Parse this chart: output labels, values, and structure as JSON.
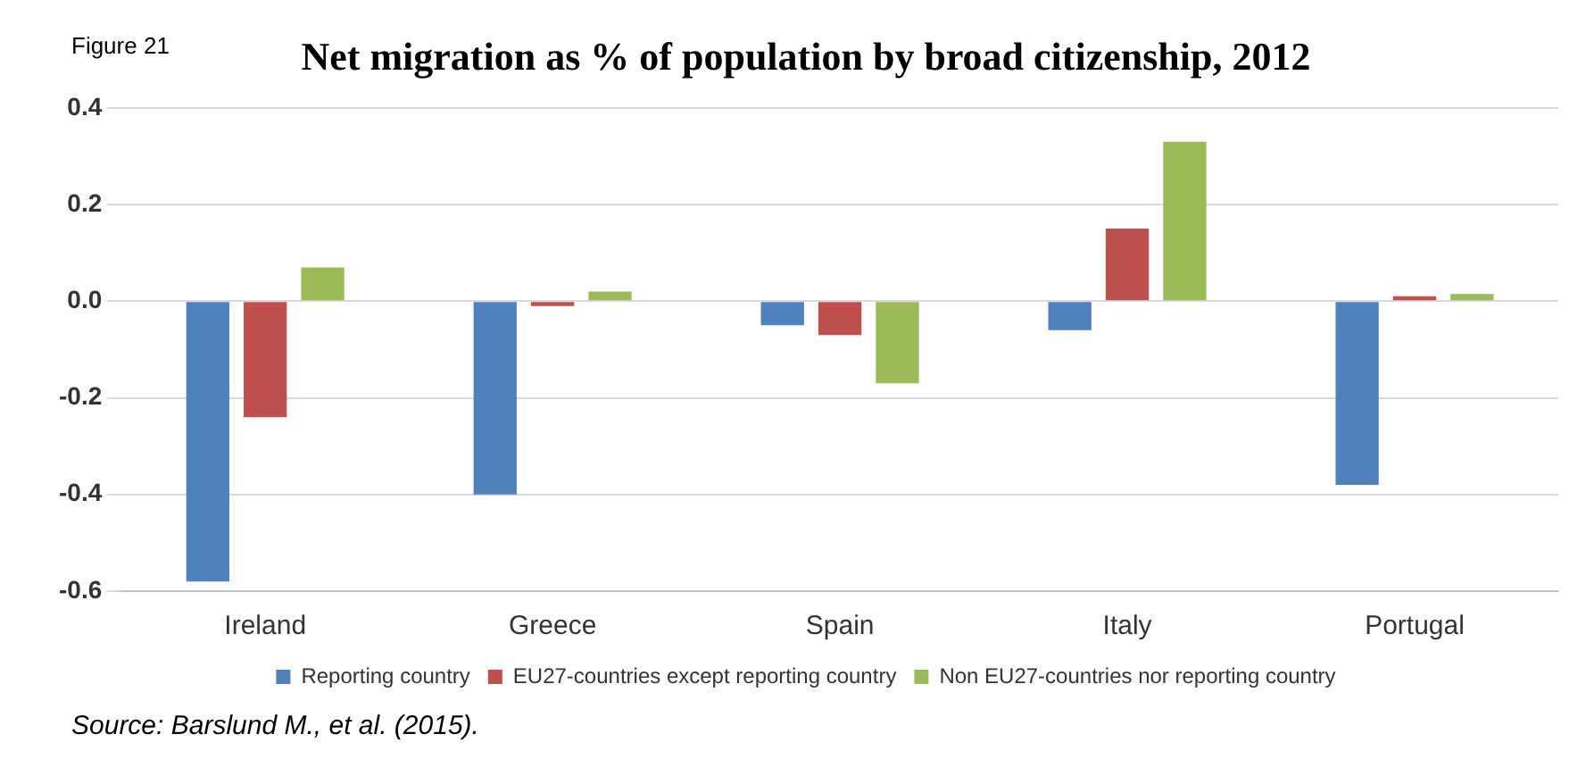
{
  "chart_data": {
    "type": "bar",
    "title": "Net migration as % of population by broad citizenship, 2012",
    "categories": [
      "Ireland",
      "Greece",
      "Spain",
      "Italy",
      "Portugal"
    ],
    "series": [
      {
        "name": "Reporting country",
        "color": "#4f81bd",
        "values": [
          -0.58,
          -0.4,
          -0.05,
          -0.06,
          -0.38
        ]
      },
      {
        "name": "EU27-countries except reporting country",
        "color": "#c0504d",
        "values": [
          -0.24,
          -0.01,
          -0.07,
          0.15,
          0.01
        ]
      },
      {
        "name": "Non EU27-countries nor reporting country",
        "color": "#9bbb59",
        "values": [
          0.07,
          0.02,
          -0.17,
          0.33,
          0.015
        ]
      }
    ],
    "ylim": [
      -0.6,
      0.4
    ],
    "yticks": [
      {
        "value": -0.6,
        "label": "-0.6"
      },
      {
        "value": -0.4,
        "label": "-0.4"
      },
      {
        "value": -0.2,
        "label": "-0.2"
      },
      {
        "value": 0,
        "label": "0.0"
      },
      {
        "value": 0.2,
        "label": "0.2"
      },
      {
        "value": 0.4,
        "label": "0.4"
      }
    ],
    "grid": "y",
    "legend": "bottom",
    "annotations": [
      "Figure 21",
      "Source: Barslund M., et al. (2015)."
    ]
  }
}
